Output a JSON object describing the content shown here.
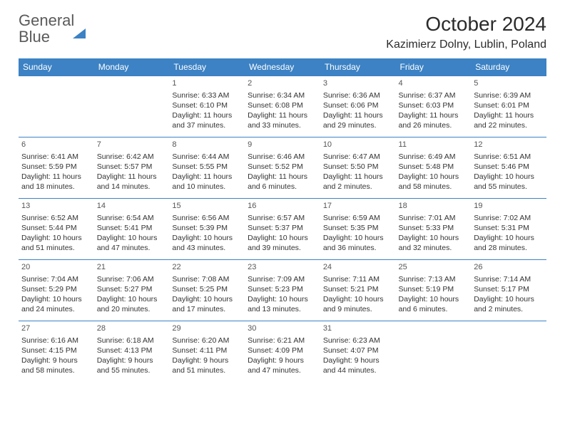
{
  "brand": {
    "part1": "General",
    "part2": "Blue"
  },
  "title": "October 2024",
  "location": "Kazimierz Dolny, Lublin, Poland",
  "colors": {
    "header_bg": "#3c82c4",
    "header_text": "#ffffff",
    "row_border": "#3c82c4",
    "page_bg": "#ffffff",
    "text": "#333333",
    "logo_gray": "#5a5a5a",
    "logo_blue": "#3c82c4"
  },
  "typography": {
    "title_fontsize": 28,
    "location_fontsize": 16,
    "dayheader_fontsize": 12,
    "cell_fontsize": 10.5
  },
  "day_headers": [
    "Sunday",
    "Monday",
    "Tuesday",
    "Wednesday",
    "Thursday",
    "Friday",
    "Saturday"
  ],
  "weeks": [
    [
      null,
      null,
      {
        "n": "1",
        "sr": "6:33 AM",
        "ss": "6:10 PM",
        "dl": "11 hours and 37 minutes."
      },
      {
        "n": "2",
        "sr": "6:34 AM",
        "ss": "6:08 PM",
        "dl": "11 hours and 33 minutes."
      },
      {
        "n": "3",
        "sr": "6:36 AM",
        "ss": "6:06 PM",
        "dl": "11 hours and 29 minutes."
      },
      {
        "n": "4",
        "sr": "6:37 AM",
        "ss": "6:03 PM",
        "dl": "11 hours and 26 minutes."
      },
      {
        "n": "5",
        "sr": "6:39 AM",
        "ss": "6:01 PM",
        "dl": "11 hours and 22 minutes."
      }
    ],
    [
      {
        "n": "6",
        "sr": "6:41 AM",
        "ss": "5:59 PM",
        "dl": "11 hours and 18 minutes."
      },
      {
        "n": "7",
        "sr": "6:42 AM",
        "ss": "5:57 PM",
        "dl": "11 hours and 14 minutes."
      },
      {
        "n": "8",
        "sr": "6:44 AM",
        "ss": "5:55 PM",
        "dl": "11 hours and 10 minutes."
      },
      {
        "n": "9",
        "sr": "6:46 AM",
        "ss": "5:52 PM",
        "dl": "11 hours and 6 minutes."
      },
      {
        "n": "10",
        "sr": "6:47 AM",
        "ss": "5:50 PM",
        "dl": "11 hours and 2 minutes."
      },
      {
        "n": "11",
        "sr": "6:49 AM",
        "ss": "5:48 PM",
        "dl": "10 hours and 58 minutes."
      },
      {
        "n": "12",
        "sr": "6:51 AM",
        "ss": "5:46 PM",
        "dl": "10 hours and 55 minutes."
      }
    ],
    [
      {
        "n": "13",
        "sr": "6:52 AM",
        "ss": "5:44 PM",
        "dl": "10 hours and 51 minutes."
      },
      {
        "n": "14",
        "sr": "6:54 AM",
        "ss": "5:41 PM",
        "dl": "10 hours and 47 minutes."
      },
      {
        "n": "15",
        "sr": "6:56 AM",
        "ss": "5:39 PM",
        "dl": "10 hours and 43 minutes."
      },
      {
        "n": "16",
        "sr": "6:57 AM",
        "ss": "5:37 PM",
        "dl": "10 hours and 39 minutes."
      },
      {
        "n": "17",
        "sr": "6:59 AM",
        "ss": "5:35 PM",
        "dl": "10 hours and 36 minutes."
      },
      {
        "n": "18",
        "sr": "7:01 AM",
        "ss": "5:33 PM",
        "dl": "10 hours and 32 minutes."
      },
      {
        "n": "19",
        "sr": "7:02 AM",
        "ss": "5:31 PM",
        "dl": "10 hours and 28 minutes."
      }
    ],
    [
      {
        "n": "20",
        "sr": "7:04 AM",
        "ss": "5:29 PM",
        "dl": "10 hours and 24 minutes."
      },
      {
        "n": "21",
        "sr": "7:06 AM",
        "ss": "5:27 PM",
        "dl": "10 hours and 20 minutes."
      },
      {
        "n": "22",
        "sr": "7:08 AM",
        "ss": "5:25 PM",
        "dl": "10 hours and 17 minutes."
      },
      {
        "n": "23",
        "sr": "7:09 AM",
        "ss": "5:23 PM",
        "dl": "10 hours and 13 minutes."
      },
      {
        "n": "24",
        "sr": "7:11 AM",
        "ss": "5:21 PM",
        "dl": "10 hours and 9 minutes."
      },
      {
        "n": "25",
        "sr": "7:13 AM",
        "ss": "5:19 PM",
        "dl": "10 hours and 6 minutes."
      },
      {
        "n": "26",
        "sr": "7:14 AM",
        "ss": "5:17 PM",
        "dl": "10 hours and 2 minutes."
      }
    ],
    [
      {
        "n": "27",
        "sr": "6:16 AM",
        "ss": "4:15 PM",
        "dl": "9 hours and 58 minutes."
      },
      {
        "n": "28",
        "sr": "6:18 AM",
        "ss": "4:13 PM",
        "dl": "9 hours and 55 minutes."
      },
      {
        "n": "29",
        "sr": "6:20 AM",
        "ss": "4:11 PM",
        "dl": "9 hours and 51 minutes."
      },
      {
        "n": "30",
        "sr": "6:21 AM",
        "ss": "4:09 PM",
        "dl": "9 hours and 47 minutes."
      },
      {
        "n": "31",
        "sr": "6:23 AM",
        "ss": "4:07 PM",
        "dl": "9 hours and 44 minutes."
      },
      null,
      null
    ]
  ],
  "labels": {
    "sunrise": "Sunrise: ",
    "sunset": "Sunset: ",
    "daylight": "Daylight: "
  }
}
